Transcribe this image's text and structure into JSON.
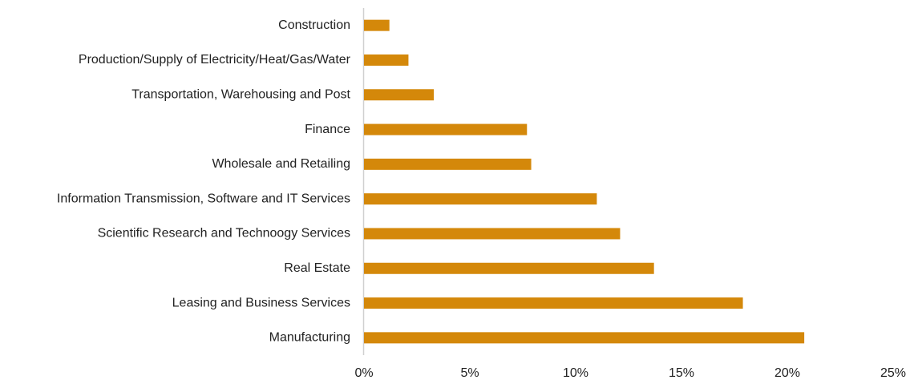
{
  "chart_data": {
    "type": "bar",
    "orientation": "horizontal",
    "categories": [
      "Construction",
      "Production/Supply of Electricity/Heat/Gas/Water",
      "Transportation, Warehousing and Post",
      "Finance",
      "Wholesale and Retailing",
      "Information Transmission, Software and IT Services",
      "Scientific Research and Technoogy Services",
      "Real Estate",
      "Leasing and Business Services",
      "Manufacturing"
    ],
    "values": [
      1.2,
      2.1,
      3.3,
      7.7,
      7.9,
      11.0,
      12.1,
      13.7,
      17.9,
      20.8
    ],
    "color": "#d4880a",
    "xlim": [
      0,
      25
    ],
    "xticks": [
      {
        "value": 0,
        "label": "0%"
      },
      {
        "value": 5,
        "label": "5%"
      },
      {
        "value": 10,
        "label": "10%"
      },
      {
        "value": 15,
        "label": "15%"
      },
      {
        "value": 20,
        "label": "20%"
      },
      {
        "value": 25,
        "label": "25%"
      }
    ],
    "grid": false
  }
}
